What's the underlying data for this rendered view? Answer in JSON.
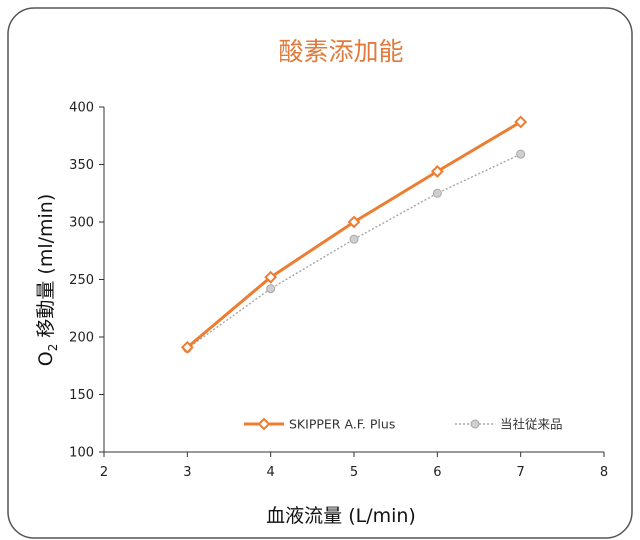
{
  "chart_data": {
    "type": "line",
    "title": "酸素添加能",
    "xlabel": "血液流量 (L/min)",
    "ylabel_prefix": "O",
    "ylabel_subscript": "2",
    "ylabel_suffix": " 移動量 (ml/min)",
    "xlim": [
      2,
      8
    ],
    "ylim": [
      100,
      400
    ],
    "xticks": [
      2,
      3,
      4,
      5,
      6,
      7,
      8
    ],
    "yticks": [
      100,
      150,
      200,
      250,
      300,
      350,
      400
    ],
    "grid": false,
    "legend_position": "bottom-right",
    "series": [
      {
        "name": "SKIPPER A.F. Plus",
        "color": "#ed7d31",
        "marker": "diamond-open",
        "line": "solid",
        "x": [
          3,
          4,
          5,
          6,
          7
        ],
        "y": [
          191,
          252,
          300,
          344,
          387
        ]
      },
      {
        "name": "当社従来品",
        "color": "#a6a6a6",
        "marker": "circle-filled",
        "line": "dotted",
        "x": [
          3,
          4,
          5,
          6,
          7
        ],
        "y": [
          190,
          242,
          285,
          325,
          359
        ]
      }
    ]
  },
  "colors": {
    "title": "#e07b3c",
    "frame": "#555555",
    "axis": "#333333"
  }
}
